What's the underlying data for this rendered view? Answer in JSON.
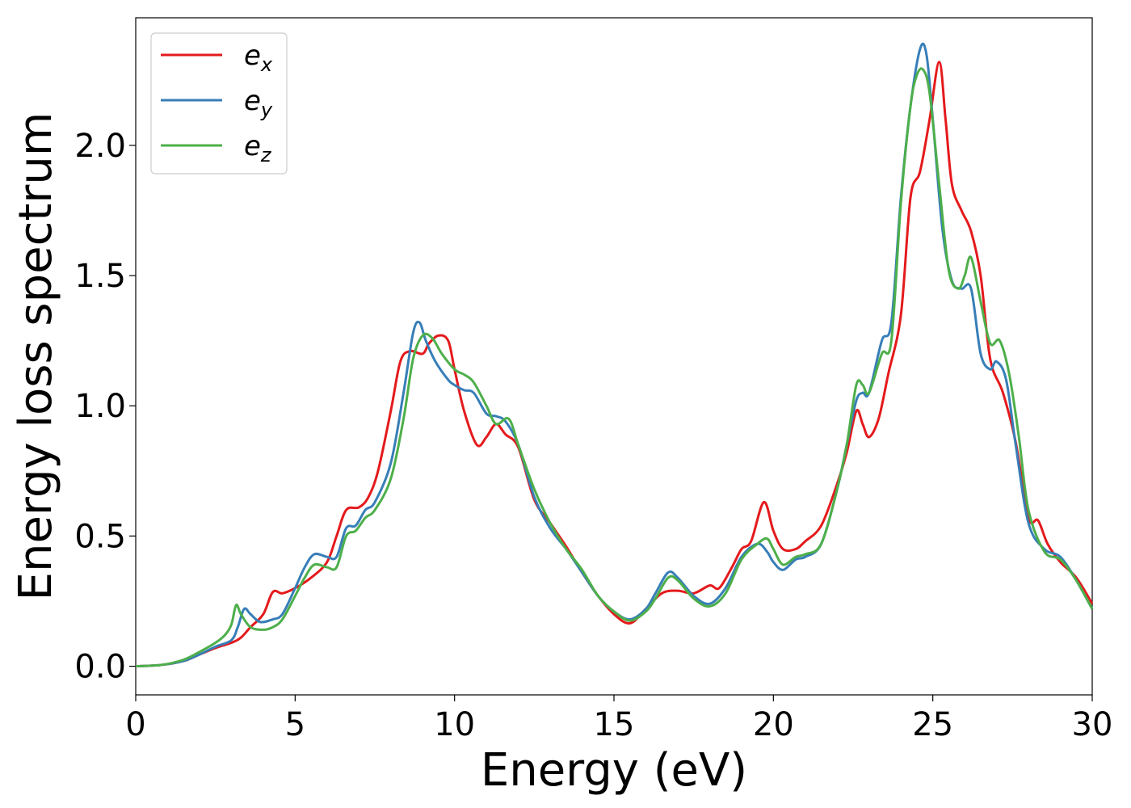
{
  "chart_data": {
    "type": "line",
    "title": "",
    "xlabel": "Energy (eV)",
    "ylabel": "Energy loss spectrum",
    "xlim": [
      0,
      30
    ],
    "ylim": [
      -0.11,
      2.49
    ],
    "xticks": [
      0,
      5,
      10,
      15,
      20,
      25,
      30
    ],
    "xtick_labels": [
      "0",
      "5",
      "10",
      "15",
      "20",
      "25",
      "30"
    ],
    "yticks": [
      0.0,
      0.5,
      1.0,
      1.5,
      2.0
    ],
    "ytick_labels": [
      "0.0",
      "0.5",
      "1.0",
      "1.5",
      "2.0"
    ],
    "grid": false,
    "legend_position": "top-left",
    "series": [
      {
        "name": "e_x",
        "label_base": "e",
        "label_sub": "x",
        "color": "#e41a1c",
        "x": [
          0,
          0.8,
          1.5,
          2,
          2.5,
          3,
          3.3,
          3.6,
          4,
          4.3,
          4.6,
          5,
          5.5,
          6,
          6.3,
          6.6,
          7,
          7.3,
          7.6,
          8,
          8.3,
          8.6,
          9,
          9.2,
          9.5,
          9.8,
          10,
          10.3,
          10.7,
          11,
          11.3,
          11.6,
          12,
          12.5,
          13,
          13.5,
          14,
          14.5,
          15,
          15.5,
          16,
          16.5,
          17,
          17.5,
          18,
          18.3,
          18.7,
          19,
          19.3,
          19.7,
          20,
          20.3,
          20.7,
          21,
          21.5,
          22,
          22.3,
          22.6,
          22.8,
          23,
          23.3,
          23.6,
          24,
          24.3,
          24.6,
          24.9,
          25.2,
          25.4,
          25.6,
          25.9,
          26.2,
          26.5,
          26.8,
          27.2,
          27.6,
          28,
          28.3,
          28.6,
          29,
          29.5,
          30
        ],
        "y": [
          0,
          0.005,
          0.02,
          0.045,
          0.07,
          0.09,
          0.11,
          0.15,
          0.2,
          0.285,
          0.28,
          0.3,
          0.34,
          0.4,
          0.5,
          0.6,
          0.61,
          0.65,
          0.75,
          0.98,
          1.17,
          1.21,
          1.2,
          1.24,
          1.27,
          1.25,
          1.14,
          0.98,
          0.85,
          0.88,
          0.93,
          0.89,
          0.84,
          0.64,
          0.55,
          0.46,
          0.36,
          0.27,
          0.2,
          0.165,
          0.22,
          0.28,
          0.29,
          0.28,
          0.31,
          0.3,
          0.38,
          0.45,
          0.48,
          0.63,
          0.52,
          0.45,
          0.45,
          0.48,
          0.54,
          0.7,
          0.82,
          0.98,
          0.93,
          0.88,
          0.95,
          1.12,
          1.35,
          1.8,
          1.9,
          2.1,
          2.32,
          2.1,
          1.85,
          1.75,
          1.67,
          1.5,
          1.18,
          1.05,
          0.86,
          0.57,
          0.56,
          0.47,
          0.4,
          0.34,
          0.24
        ]
      },
      {
        "name": "e_y",
        "label_base": "e",
        "label_sub": "y",
        "color": "#377eb8",
        "x": [
          0,
          0.8,
          1.5,
          2,
          2.5,
          3,
          3.2,
          3.4,
          3.6,
          3.9,
          4.3,
          4.6,
          5,
          5.3,
          5.6,
          6,
          6.3,
          6.6,
          6.9,
          7.2,
          7.5,
          8,
          8.4,
          8.7,
          8.9,
          9.1,
          9.4,
          9.8,
          10,
          10.3,
          10.6,
          11,
          11.3,
          11.6,
          12,
          12.5,
          13,
          13.5,
          14,
          14.5,
          15,
          15.5,
          16,
          16.3,
          16.7,
          17,
          17.5,
          18,
          18.5,
          19,
          19.5,
          19.8,
          20,
          20.3,
          20.7,
          21,
          21.5,
          22,
          22.3,
          22.6,
          22.8,
          23,
          23.4,
          23.7,
          24,
          24.3,
          24.6,
          24.8,
          25,
          25.3,
          25.6,
          25.9,
          26.2,
          26.5,
          26.8,
          27,
          27.3,
          27.6,
          28,
          28.5,
          29,
          29.5,
          30
        ],
        "y": [
          0,
          0.005,
          0.02,
          0.045,
          0.075,
          0.1,
          0.15,
          0.22,
          0.2,
          0.17,
          0.18,
          0.2,
          0.3,
          0.38,
          0.43,
          0.42,
          0.42,
          0.53,
          0.54,
          0.6,
          0.63,
          0.78,
          1.05,
          1.28,
          1.32,
          1.25,
          1.17,
          1.1,
          1.08,
          1.06,
          1.05,
          0.97,
          0.96,
          0.94,
          0.85,
          0.65,
          0.53,
          0.45,
          0.36,
          0.27,
          0.21,
          0.18,
          0.22,
          0.28,
          0.36,
          0.34,
          0.27,
          0.24,
          0.3,
          0.42,
          0.47,
          0.44,
          0.4,
          0.37,
          0.41,
          0.42,
          0.47,
          0.68,
          0.85,
          1.02,
          1.05,
          1.05,
          1.25,
          1.32,
          1.8,
          2.15,
          2.37,
          2.35,
          2.1,
          1.68,
          1.48,
          1.45,
          1.45,
          1.2,
          1.14,
          1.17,
          1.1,
          0.85,
          0.55,
          0.45,
          0.42,
          0.33,
          0.22
        ]
      },
      {
        "name": "e_z",
        "label_base": "e",
        "label_sub": "z",
        "color": "#4daf4a",
        "x": [
          0,
          0.8,
          1.5,
          2,
          2.5,
          2.8,
          3,
          3.15,
          3.3,
          3.6,
          4,
          4.3,
          4.6,
          5,
          5.3,
          5.6,
          6,
          6.3,
          6.6,
          6.9,
          7.2,
          7.5,
          8,
          8.4,
          8.7,
          9,
          9.3,
          9.6,
          10,
          10.3,
          10.6,
          11,
          11.3,
          11.7,
          12,
          12.5,
          13,
          13.5,
          14,
          14.5,
          15,
          15.5,
          16,
          16.3,
          16.7,
          17,
          17.5,
          18,
          18.5,
          19,
          19.5,
          19.8,
          20,
          20.3,
          20.7,
          21,
          21.5,
          22,
          22.3,
          22.6,
          22.8,
          23,
          23.4,
          23.7,
          24,
          24.3,
          24.5,
          24.7,
          24.9,
          25.2,
          25.5,
          25.8,
          26,
          26.2,
          26.5,
          26.8,
          27.1,
          27.4,
          27.7,
          28,
          28.5,
          29,
          29.5,
          30
        ],
        "y": [
          0,
          0.005,
          0.025,
          0.055,
          0.09,
          0.12,
          0.16,
          0.235,
          0.2,
          0.15,
          0.14,
          0.15,
          0.18,
          0.27,
          0.34,
          0.39,
          0.38,
          0.38,
          0.5,
          0.52,
          0.57,
          0.6,
          0.72,
          0.95,
          1.18,
          1.27,
          1.26,
          1.2,
          1.14,
          1.12,
          1.09,
          1.0,
          0.93,
          0.95,
          0.85,
          0.68,
          0.55,
          0.45,
          0.37,
          0.27,
          0.21,
          0.175,
          0.21,
          0.26,
          0.34,
          0.33,
          0.26,
          0.23,
          0.28,
          0.41,
          0.47,
          0.49,
          0.45,
          0.39,
          0.42,
          0.43,
          0.47,
          0.68,
          0.85,
          1.08,
          1.08,
          1.05,
          1.2,
          1.25,
          1.78,
          2.15,
          2.27,
          2.29,
          2.2,
          1.85,
          1.52,
          1.45,
          1.5,
          1.57,
          1.4,
          1.24,
          1.25,
          1.12,
          0.88,
          0.6,
          0.44,
          0.41,
          0.33,
          0.22
        ]
      }
    ]
  }
}
